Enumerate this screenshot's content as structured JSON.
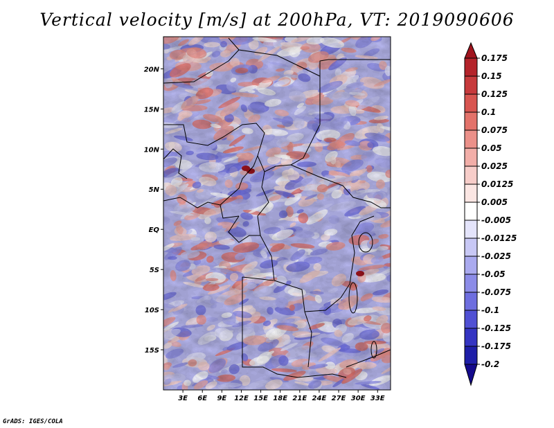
{
  "chart_data": {
    "type": "heatmap",
    "title": "Vertical velocity [m/s] at 200hPa, VT: 2019090606",
    "variable": "Vertical velocity",
    "units": "m/s",
    "level": "200hPa",
    "valid_time": "2019090606",
    "x_axis": {
      "range": [
        0,
        35
      ],
      "ticks": [
        3,
        6,
        9,
        12,
        15,
        18,
        21,
        24,
        27,
        30,
        33
      ],
      "tick_labels": [
        "3E",
        "6E",
        "9E",
        "12E",
        "15E",
        "18E",
        "21E",
        "24E",
        "27E",
        "30E",
        "33E"
      ]
    },
    "y_axis": {
      "range": [
        -20,
        24
      ],
      "ticks": [
        20,
        15,
        10,
        5,
        0,
        -5,
        -10,
        -15
      ],
      "tick_labels": [
        "20N",
        "15N",
        "10N",
        "5N",
        "EQ",
        "5S",
        "10S",
        "15S"
      ]
    },
    "colorbar": {
      "levels": [
        "0.175",
        "0.15",
        "0.125",
        "0.1",
        "0.075",
        "0.05",
        "0.025",
        "0.0125",
        "0.005",
        "-0.005",
        "-0.0125",
        "-0.025",
        "-0.05",
        "-0.075",
        "-0.1",
        "-0.125",
        "-0.175",
        "-0.2"
      ],
      "colors": [
        "#a0141e",
        "#b4232a",
        "#c73a3c",
        "#d85550",
        "#e3726a",
        "#eb9089",
        "#f2aea8",
        "#f7cdc9",
        "#fbe6e3",
        "#ffffff",
        "#e4e4fb",
        "#c8c8f5",
        "#aaaaef",
        "#8c8ce8",
        "#6e6edf",
        "#5050d4",
        "#3434c2",
        "#1e1ea8",
        "#140a8c"
      ]
    },
    "grid": false,
    "legend_position": "right"
  },
  "footer": "GrADS: IGES/COLA"
}
